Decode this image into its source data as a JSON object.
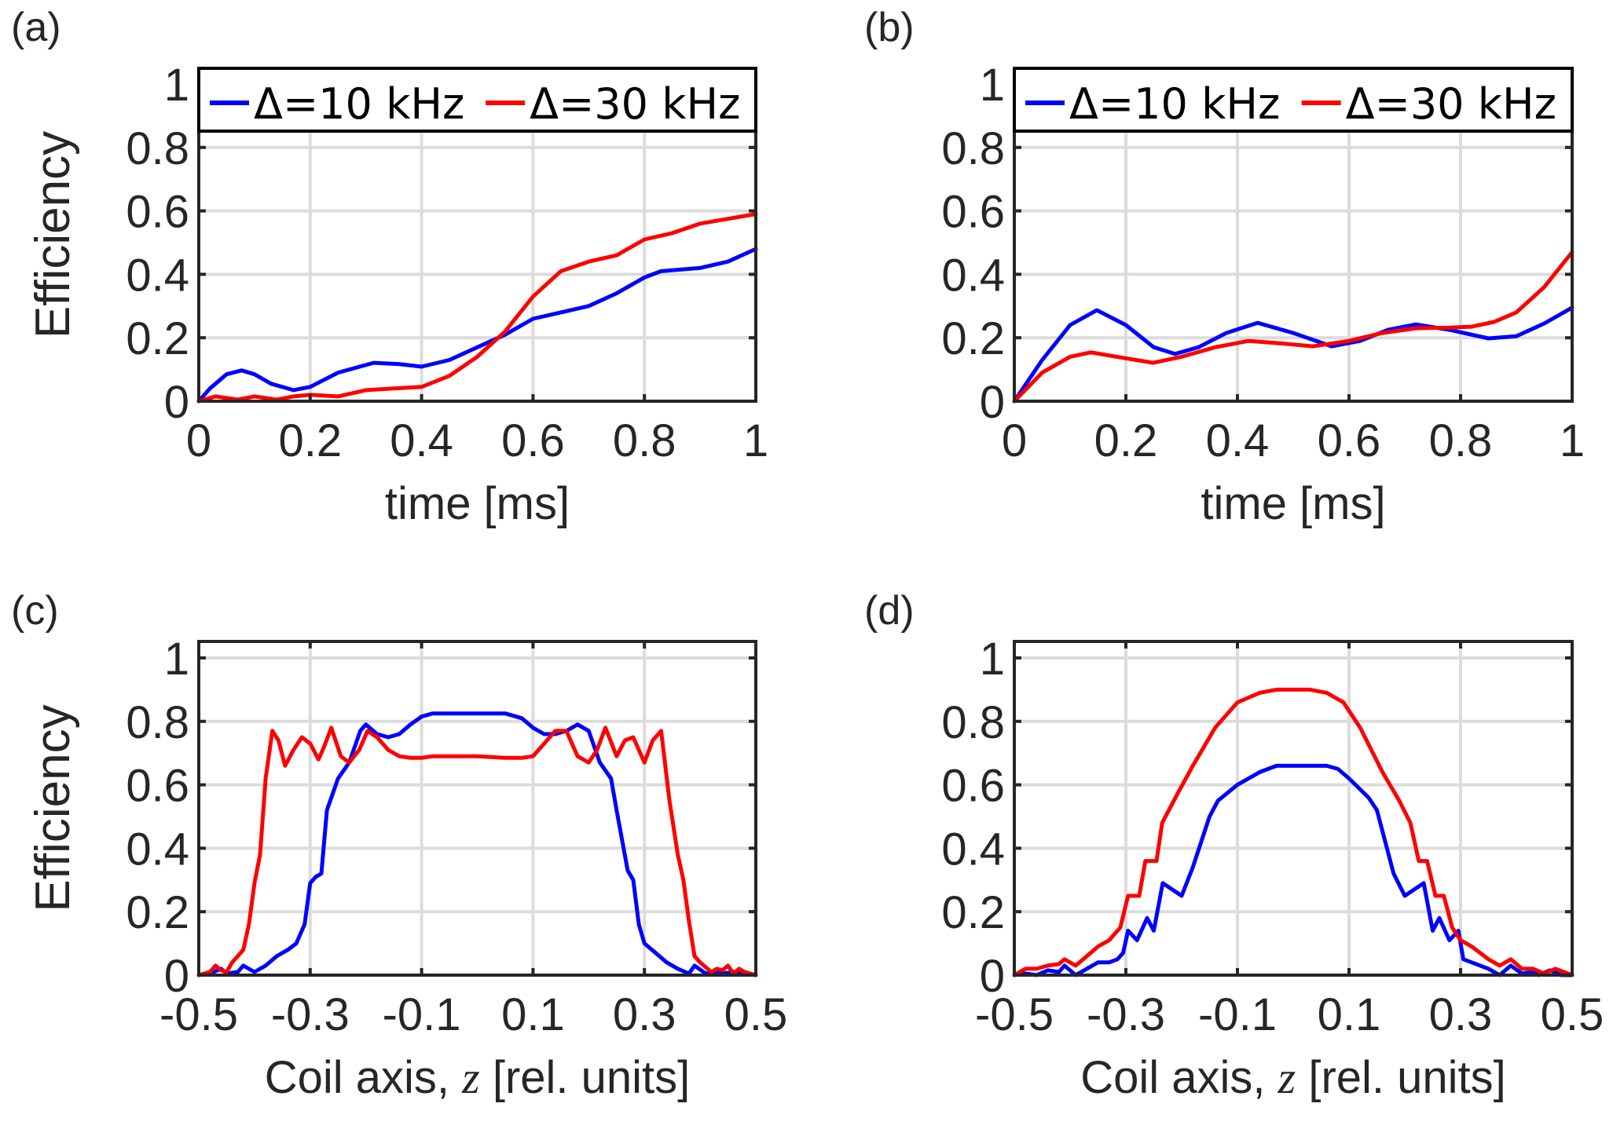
{
  "colors": {
    "series_10kHz": "#0000ff",
    "series_30kHz": "#ff0000",
    "grid": "#dcdcdc",
    "axes": "#262626"
  },
  "chart_data": [
    {
      "panel_label": "(a)",
      "type": "line",
      "xlabel": "time [ms]",
      "ylabel": "Efficiency",
      "xlim": [
        0,
        1
      ],
      "ylim": [
        0,
        1.05
      ],
      "xticks": [
        0,
        0.2,
        0.4,
        0.6,
        0.8,
        1
      ],
      "xtick_labels": [
        "0",
        "0.2",
        "0.4",
        "0.6",
        "0.8",
        "1"
      ],
      "yticks": [
        0,
        0.2,
        0.4,
        0.6,
        0.8,
        1
      ],
      "ytick_labels": [
        "0",
        "0.2",
        "0.4",
        "0.6",
        "0.8",
        "1"
      ],
      "grid": true,
      "legend": {
        "placement": "top",
        "entries": [
          "Δ=10 kHz",
          "Δ=30 kHz"
        ]
      },
      "series": [
        {
          "name": "Δ=10 kHz",
          "x": [
            0,
            0.02,
            0.05,
            0.077,
            0.1,
            0.13,
            0.17,
            0.2,
            0.25,
            0.314,
            0.36,
            0.4,
            0.45,
            0.5,
            0.55,
            0.6,
            0.65,
            0.7,
            0.75,
            0.8,
            0.83,
            0.9,
            0.95,
            1.0
          ],
          "y": [
            0,
            0.04,
            0.085,
            0.097,
            0.085,
            0.055,
            0.035,
            0.045,
            0.09,
            0.121,
            0.117,
            0.109,
            0.13,
            0.17,
            0.21,
            0.26,
            0.28,
            0.3,
            0.34,
            0.39,
            0.41,
            0.42,
            0.44,
            0.48
          ]
        },
        {
          "name": "Δ=30 kHz",
          "x": [
            0,
            0.03,
            0.07,
            0.1,
            0.14,
            0.17,
            0.2,
            0.25,
            0.3,
            0.35,
            0.4,
            0.45,
            0.5,
            0.55,
            0.6,
            0.65,
            0.7,
            0.75,
            0.8,
            0.85,
            0.9,
            0.95,
            1.0
          ],
          "y": [
            0,
            0.015,
            0.005,
            0.015,
            0.005,
            0.015,
            0.02,
            0.015,
            0.035,
            0.04,
            0.045,
            0.08,
            0.14,
            0.22,
            0.33,
            0.41,
            0.44,
            0.46,
            0.51,
            0.53,
            0.56,
            0.575,
            0.59
          ]
        }
      ]
    },
    {
      "panel_label": "(b)",
      "type": "line",
      "xlabel": "time [ms]",
      "ylabel": "",
      "xlim": [
        0,
        1
      ],
      "ylim": [
        0,
        1.05
      ],
      "xticks": [
        0,
        0.2,
        0.4,
        0.6,
        0.8,
        1
      ],
      "xtick_labels": [
        "0",
        "0.2",
        "0.4",
        "0.6",
        "0.8",
        "1"
      ],
      "yticks": [
        0,
        0.2,
        0.4,
        0.6,
        0.8,
        1
      ],
      "ytick_labels": [
        "0",
        "0.2",
        "0.4",
        "0.6",
        "0.8",
        "1"
      ],
      "grid": true,
      "legend": {
        "placement": "top",
        "entries": [
          "Δ=10 kHz",
          "Δ=30 kHz"
        ]
      },
      "series": [
        {
          "name": "Δ=10 kHz",
          "x": [
            0,
            0.05,
            0.1,
            0.148,
            0.2,
            0.25,
            0.288,
            0.33,
            0.38,
            0.436,
            0.5,
            0.569,
            0.62,
            0.67,
            0.72,
            0.78,
            0.85,
            0.9,
            0.95,
            1.0
          ],
          "y": [
            0,
            0.13,
            0.24,
            0.287,
            0.24,
            0.17,
            0.149,
            0.17,
            0.215,
            0.247,
            0.215,
            0.173,
            0.19,
            0.225,
            0.242,
            0.225,
            0.198,
            0.205,
            0.245,
            0.295
          ]
        },
        {
          "name": "Δ=30 kHz",
          "x": [
            0,
            0.05,
            0.1,
            0.137,
            0.19,
            0.249,
            0.3,
            0.36,
            0.42,
            0.48,
            0.535,
            0.6,
            0.66,
            0.72,
            0.78,
            0.82,
            0.86,
            0.9,
            0.95,
            1.0
          ],
          "y": [
            0,
            0.09,
            0.14,
            0.154,
            0.138,
            0.121,
            0.14,
            0.17,
            0.19,
            0.182,
            0.173,
            0.19,
            0.215,
            0.23,
            0.232,
            0.235,
            0.25,
            0.28,
            0.36,
            0.47
          ]
        }
      ]
    },
    {
      "panel_label": "(c)",
      "type": "line",
      "xlabel": "Coil axis, z [rel. units]",
      "ylabel": "Efficiency",
      "xlim": [
        -0.5,
        0.5
      ],
      "ylim": [
        0,
        1.05
      ],
      "xticks": [
        -0.5,
        -0.3,
        -0.1,
        0.1,
        0.3,
        0.5
      ],
      "xtick_labels": [
        "-0.5",
        "-0.3",
        "-0.1",
        "0.1",
        "0.3",
        "0.5"
      ],
      "yticks": [
        0,
        0.2,
        0.4,
        0.6,
        0.8,
        1
      ],
      "ytick_labels": [
        "0",
        "0.2",
        "0.4",
        "0.6",
        "0.8",
        "1"
      ],
      "grid": true,
      "series": [
        {
          "name": "Δ=10 kHz",
          "x": [
            -0.5,
            -0.48,
            -0.46,
            -0.45,
            -0.43,
            -0.42,
            -0.4,
            -0.38,
            -0.36,
            -0.34,
            -0.325,
            -0.31,
            -0.3,
            -0.29,
            -0.28,
            -0.27,
            -0.25,
            -0.23,
            -0.21,
            -0.2,
            -0.18,
            -0.16,
            -0.14,
            -0.12,
            -0.1,
            -0.08,
            -0.05,
            0,
            0.05,
            0.08,
            0.1,
            0.12,
            0.14,
            0.16,
            0.18,
            0.2,
            0.22,
            0.24,
            0.25,
            0.27,
            0.28,
            0.29,
            0.3,
            0.32,
            0.34,
            0.36,
            0.38,
            0.39,
            0.41,
            0.42,
            0.44,
            0.46,
            0.48,
            0.5
          ],
          "y": [
            0,
            0.005,
            0.02,
            0.005,
            0.01,
            0.03,
            0.01,
            0.03,
            0.06,
            0.08,
            0.1,
            0.16,
            0.29,
            0.31,
            0.32,
            0.52,
            0.62,
            0.67,
            0.77,
            0.79,
            0.76,
            0.75,
            0.76,
            0.79,
            0.815,
            0.825,
            0.825,
            0.825,
            0.825,
            0.81,
            0.78,
            0.76,
            0.76,
            0.77,
            0.79,
            0.77,
            0.67,
            0.62,
            0.52,
            0.33,
            0.3,
            0.16,
            0.1,
            0.07,
            0.04,
            0.02,
            0.005,
            0.03,
            0.005,
            0.01,
            0.005,
            0.01,
            0.005,
            0
          ]
        },
        {
          "name": "Δ=30 kHz",
          "x": [
            -0.5,
            -0.48,
            -0.47,
            -0.46,
            -0.45,
            -0.44,
            -0.43,
            -0.42,
            -0.41,
            -0.4,
            -0.39,
            -0.38,
            -0.368,
            -0.357,
            -0.345,
            -0.33,
            -0.315,
            -0.3,
            -0.285,
            -0.275,
            -0.262,
            -0.245,
            -0.23,
            -0.212,
            -0.197,
            -0.18,
            -0.16,
            -0.14,
            -0.12,
            -0.1,
            -0.08,
            -0.05,
            0,
            0.05,
            0.08,
            0.1,
            0.12,
            0.14,
            0.16,
            0.18,
            0.2,
            0.215,
            0.23,
            0.25,
            0.265,
            0.28,
            0.3,
            0.315,
            0.33,
            0.345,
            0.36,
            0.37,
            0.38,
            0.39,
            0.4,
            0.41,
            0.42,
            0.43,
            0.44,
            0.45,
            0.46,
            0.47,
            0.48,
            0.5
          ],
          "y": [
            0,
            0.01,
            0.03,
            0.015,
            0.01,
            0.04,
            0.06,
            0.08,
            0.16,
            0.29,
            0.38,
            0.62,
            0.77,
            0.74,
            0.66,
            0.71,
            0.75,
            0.73,
            0.68,
            0.72,
            0.78,
            0.69,
            0.67,
            0.71,
            0.77,
            0.75,
            0.71,
            0.69,
            0.685,
            0.685,
            0.69,
            0.69,
            0.69,
            0.685,
            0.685,
            0.69,
            0.73,
            0.77,
            0.77,
            0.69,
            0.67,
            0.71,
            0.78,
            0.69,
            0.74,
            0.75,
            0.67,
            0.74,
            0.77,
            0.55,
            0.38,
            0.3,
            0.17,
            0.06,
            0.04,
            0.025,
            0.01,
            0.02,
            0.015,
            0.03,
            0.005,
            0.02,
            0.01,
            0
          ]
        }
      ]
    },
    {
      "panel_label": "(d)",
      "type": "line",
      "xlabel": "Coil axis, z [rel. units]",
      "ylabel": "",
      "xlim": [
        -0.5,
        0.5
      ],
      "ylim": [
        0,
        1.05
      ],
      "xticks": [
        -0.5,
        -0.3,
        -0.1,
        0.1,
        0.3,
        0.5
      ],
      "xtick_labels": [
        "-0.5",
        "-0.3",
        "-0.1",
        "0.1",
        "0.3",
        "0.5"
      ],
      "yticks": [
        0,
        0.2,
        0.4,
        0.6,
        0.8,
        1
      ],
      "ytick_labels": [
        "0",
        "0.2",
        "0.4",
        "0.6",
        "0.8",
        "1"
      ],
      "grid": true,
      "series": [
        {
          "name": "Δ=10 kHz",
          "x": [
            -0.5,
            -0.48,
            -0.46,
            -0.44,
            -0.42,
            -0.41,
            -0.39,
            -0.37,
            -0.35,
            -0.33,
            -0.315,
            -0.305,
            -0.296,
            -0.28,
            -0.262,
            -0.25,
            -0.234,
            -0.2,
            -0.18,
            -0.15,
            -0.135,
            -0.1,
            -0.06,
            -0.03,
            0.0,
            0.03,
            0.06,
            0.08,
            0.1,
            0.135,
            0.15,
            0.18,
            0.2,
            0.234,
            0.25,
            0.262,
            0.28,
            0.296,
            0.305,
            0.32,
            0.35,
            0.37,
            0.39,
            0.41,
            0.43,
            0.44,
            0.46,
            0.48,
            0.5
          ],
          "y": [
            0,
            0.005,
            0.0,
            0.015,
            0.01,
            0.03,
            0.0,
            0.02,
            0.04,
            0.04,
            0.05,
            0.07,
            0.14,
            0.11,
            0.18,
            0.14,
            0.29,
            0.25,
            0.34,
            0.5,
            0.55,
            0.6,
            0.64,
            0.66,
            0.66,
            0.66,
            0.66,
            0.65,
            0.62,
            0.56,
            0.52,
            0.32,
            0.25,
            0.29,
            0.14,
            0.18,
            0.11,
            0.14,
            0.05,
            0.04,
            0.02,
            0.0,
            0.03,
            0.005,
            0.01,
            0.0,
            0.015,
            0.0,
            0
          ]
        },
        {
          "name": "Δ=30 kHz",
          "x": [
            -0.5,
            -0.48,
            -0.46,
            -0.44,
            -0.42,
            -0.41,
            -0.39,
            -0.37,
            -0.35,
            -0.33,
            -0.31,
            -0.296,
            -0.276,
            -0.265,
            -0.245,
            -0.235,
            -0.205,
            -0.18,
            -0.14,
            -0.1,
            -0.06,
            -0.03,
            0.0,
            0.03,
            0.06,
            0.09,
            0.12,
            0.16,
            0.19,
            0.21,
            0.225,
            0.24,
            0.255,
            0.27,
            0.285,
            0.3,
            0.32,
            0.35,
            0.37,
            0.39,
            0.41,
            0.43,
            0.45,
            0.47,
            0.5
          ],
          "y": [
            0,
            0.02,
            0.02,
            0.03,
            0.035,
            0.05,
            0.03,
            0.06,
            0.09,
            0.11,
            0.15,
            0.25,
            0.25,
            0.36,
            0.36,
            0.48,
            0.58,
            0.66,
            0.78,
            0.86,
            0.89,
            0.9,
            0.9,
            0.9,
            0.89,
            0.86,
            0.78,
            0.64,
            0.55,
            0.48,
            0.36,
            0.36,
            0.25,
            0.25,
            0.15,
            0.11,
            0.09,
            0.05,
            0.03,
            0.05,
            0.02,
            0.02,
            0.005,
            0.02,
            0
          ]
        }
      ]
    }
  ]
}
